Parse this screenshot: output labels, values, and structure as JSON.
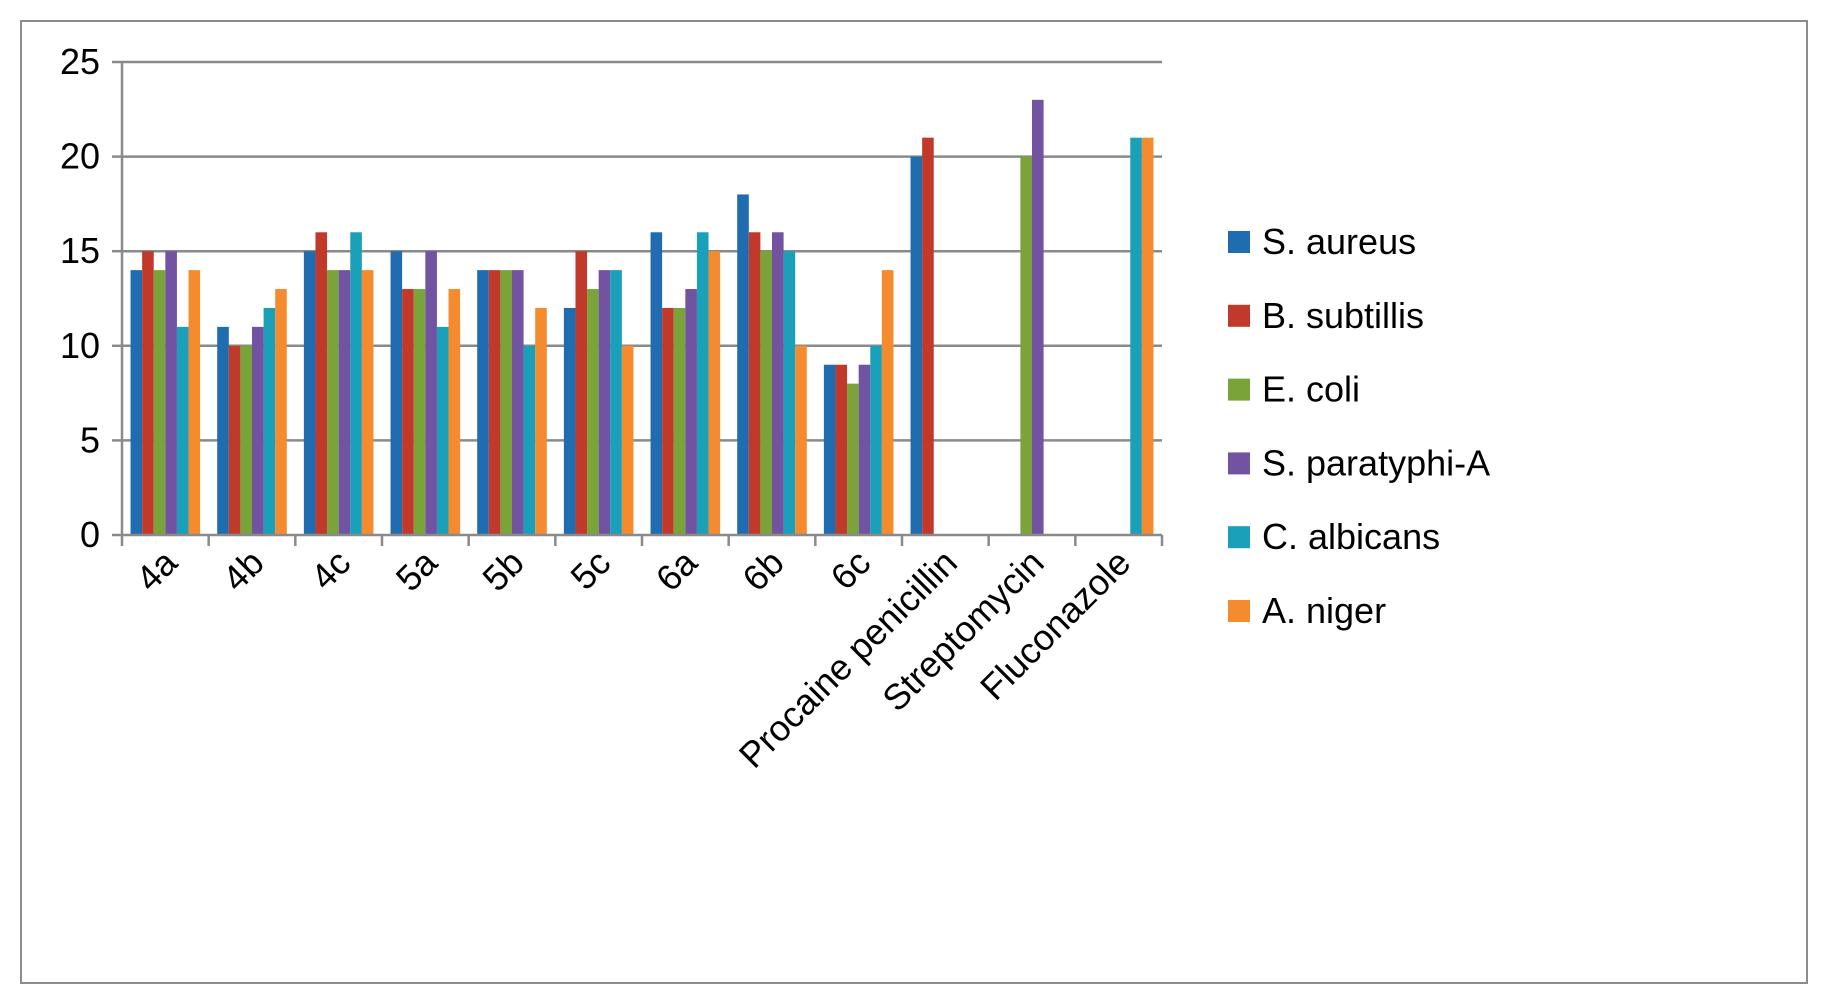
{
  "chart_data": {
    "type": "bar",
    "categories": [
      "4a",
      "4b",
      "4c",
      "5a",
      "5b",
      "5c",
      "6a",
      "6b",
      "6c",
      "Procaine penicillin",
      "Streptomycin",
      "Fluconazole"
    ],
    "series": [
      {
        "name": "S. aureus",
        "color": "#1f6cb0",
        "values": [
          14,
          11,
          15,
          15,
          14,
          12,
          16,
          18,
          9,
          20,
          null,
          null
        ]
      },
      {
        "name": "B. subtillis",
        "color": "#c0392b",
        "values": [
          15,
          10,
          16,
          13,
          14,
          15,
          12,
          16,
          9,
          21,
          null,
          null
        ]
      },
      {
        "name": "E. coli",
        "color": "#7aa33a",
        "values": [
          14,
          10,
          14,
          13,
          14,
          13,
          12,
          15,
          8,
          null,
          20,
          null
        ]
      },
      {
        "name": "S. paratyphi-A",
        "color": "#7153a1",
        "values": [
          15,
          11,
          14,
          15,
          14,
          14,
          13,
          16,
          9,
          null,
          23,
          null
        ]
      },
      {
        "name": "C. albicans",
        "color": "#1aa0b8",
        "values": [
          11,
          12,
          16,
          11,
          10,
          14,
          16,
          15,
          10,
          null,
          null,
          21
        ]
      },
      {
        "name": "A.  niger",
        "color": "#f58b2f",
        "values": [
          14,
          13,
          14,
          13,
          12,
          10,
          15,
          10,
          14,
          null,
          null,
          21
        ]
      }
    ],
    "ylim": [
      0,
      25
    ],
    "yticks": [
      "0",
      "5",
      "10",
      "15",
      "20",
      "25"
    ],
    "grid": true,
    "legend_position": "right",
    "title": "",
    "xlabel": "",
    "ylabel": ""
  }
}
